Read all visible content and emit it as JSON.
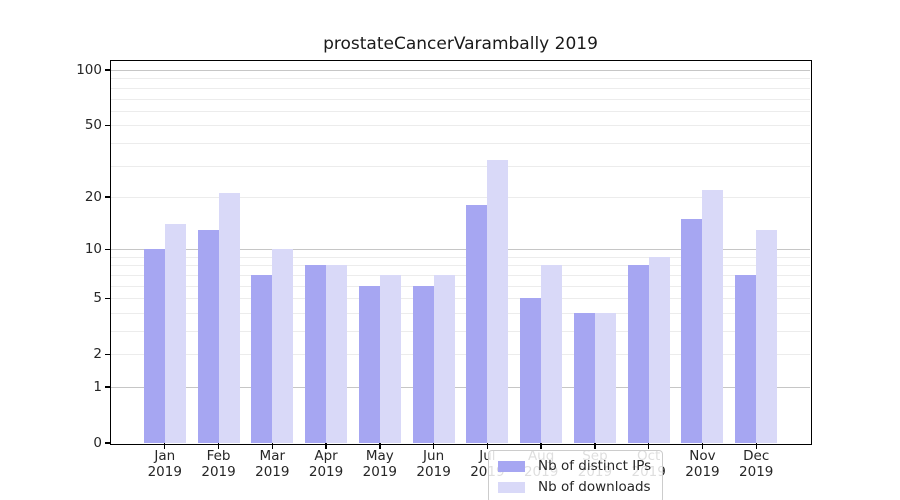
{
  "chart_data": {
    "type": "bar",
    "title": "prostateCancerVarambally 2019",
    "year": "2019",
    "categories": [
      "Jan",
      "Feb",
      "Mar",
      "Apr",
      "May",
      "Jun",
      "Jul",
      "Aug",
      "Sep",
      "Oct",
      "Nov",
      "Dec"
    ],
    "series": [
      {
        "name": "Nb of distinct IPs",
        "color": "#a6a6f2",
        "values": [
          10,
          13,
          7,
          8,
          6,
          6,
          18,
          5,
          4,
          8,
          15,
          7
        ]
      },
      {
        "name": "Nb of downloads",
        "color": "#d9d9f8",
        "values": [
          14,
          21,
          10,
          8,
          7,
          7,
          32,
          8,
          4,
          9,
          22,
          13
        ]
      }
    ],
    "yscale": "log1p",
    "yticks": [
      0,
      1,
      2,
      5,
      10,
      20,
      50,
      100
    ],
    "ylim": [
      0,
      112
    ],
    "grid_major": [
      1,
      10,
      100
    ],
    "grid_minor": [
      2,
      3,
      4,
      5,
      6,
      7,
      8,
      9,
      20,
      30,
      40,
      50,
      60,
      70,
      80,
      90
    ],
    "legend_position": "lower center",
    "colors": {
      "grid_major": "#c6c6c6",
      "grid_minor": "#ececec",
      "axis": "#000000",
      "text": "#262626"
    }
  }
}
